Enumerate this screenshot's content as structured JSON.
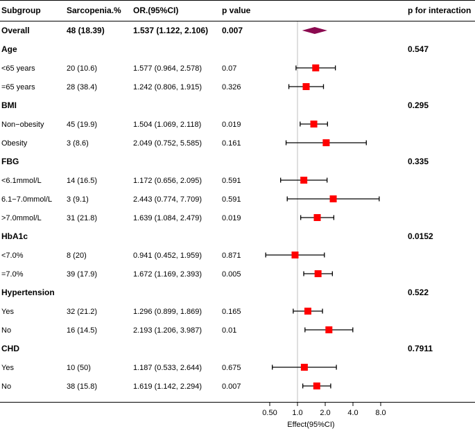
{
  "chart_data": {
    "type": "forest",
    "headers": {
      "subgroup": "Subgroup",
      "sarcopenia": "Sarcopenia.%",
      "or": "OR.(95%CI)",
      "p": "p value",
      "p_interaction": "p for interaction"
    },
    "overall": {
      "label": "Overall",
      "n": "48 (18.39)",
      "or_text": "1.537 (1.122, 2.106)",
      "p": "0.007",
      "est": 1.537,
      "lo": 1.122,
      "hi": 2.106
    },
    "groups": [
      {
        "name": "Age",
        "p_interaction": "0.547",
        "rows": [
          {
            "label": "<65 years",
            "n": "20 (10.6)",
            "or_text": "1.577 (0.964, 2.578)",
            "p": "0.07",
            "est": 1.577,
            "lo": 0.964,
            "hi": 2.578
          },
          {
            "label": "=65 years",
            "n": "28 (38.4)",
            "or_text": "1.242 (0.806, 1.915)",
            "p": "0.326",
            "est": 1.242,
            "lo": 0.806,
            "hi": 1.915
          }
        ]
      },
      {
        "name": "BMI",
        "p_interaction": "0.295",
        "rows": [
          {
            "label": "Non−obesity",
            "n": "45 (19.9)",
            "or_text": "1.504 (1.069, 2.118)",
            "p": "0.019",
            "est": 1.504,
            "lo": 1.069,
            "hi": 2.118
          },
          {
            "label": "Obesity",
            "n": "3 (8.6)",
            "or_text": "2.049 (0.752, 5.585)",
            "p": "0.161",
            "est": 2.049,
            "lo": 0.752,
            "hi": 5.585
          }
        ]
      },
      {
        "name": "FBG",
        "p_interaction": "0.335",
        "rows": [
          {
            "label": "<6.1mmol/L",
            "n": "14 (16.5)",
            "or_text": "1.172 (0.656, 2.095)",
            "p": "0.591",
            "est": 1.172,
            "lo": 0.656,
            "hi": 2.095
          },
          {
            "label": "6.1−7.0mmol/L",
            "n": "3 (9.1)",
            "or_text": "2.443 (0.774, 7.709)",
            "p": "0.591",
            "est": 2.443,
            "lo": 0.774,
            "hi": 7.709
          },
          {
            "label": ">7.0mmol/L",
            "n": "31 (21.8)",
            "or_text": "1.639 (1.084, 2.479)",
            "p": "0.019",
            "est": 1.639,
            "lo": 1.084,
            "hi": 2.479
          }
        ]
      },
      {
        "name": "HbA1c",
        "p_interaction": "0.0152",
        "rows": [
          {
            "label": "<7.0%",
            "n": "8 (20)",
            "or_text": "0.941 (0.452, 1.959)",
            "p": "0.871",
            "est": 0.941,
            "lo": 0.452,
            "hi": 1.959
          },
          {
            "label": "=7.0%",
            "n": "39 (17.9)",
            "or_text": "1.672 (1.169, 2.393)",
            "p": "0.005",
            "est": 1.672,
            "lo": 1.169,
            "hi": 2.393
          }
        ]
      },
      {
        "name": "Hypertension",
        "p_interaction": "0.522",
        "rows": [
          {
            "label": "Yes",
            "n": "32 (21.2)",
            "or_text": "1.296 (0.899, 1.869)",
            "p": "0.165",
            "est": 1.296,
            "lo": 0.899,
            "hi": 1.869
          },
          {
            "label": "No",
            "n": "16 (14.5)",
            "or_text": "2.193 (1.206, 3.987)",
            "p": "0.01",
            "est": 2.193,
            "lo": 1.206,
            "hi": 3.987
          }
        ]
      },
      {
        "name": "CHD",
        "p_interaction": "0.7911",
        "rows": [
          {
            "label": "Yes",
            "n": "10 (50)",
            "or_text": "1.187 (0.533, 2.644)",
            "p": "0.675",
            "est": 1.187,
            "lo": 0.533,
            "hi": 2.644
          },
          {
            "label": "No",
            "n": "38 (15.8)",
            "or_text": "1.619 (1.142, 2.294)",
            "p": "0.007",
            "est": 1.619,
            "lo": 1.142,
            "hi": 2.294
          }
        ]
      }
    ],
    "x_ticks": [
      0.5,
      1.0,
      2.0,
      4.0,
      8.0
    ],
    "x_tick_labels": [
      "0.50",
      "1.0",
      "2.0",
      "4.0",
      "8.0"
    ],
    "xlabel": "Effect(95%CI)",
    "x_scale": "log2",
    "reference_line": 1.0,
    "colors": {
      "point": "#ff0000",
      "overall": "#8b0a50",
      "ci": "#000000",
      "ref_line": "#bfbfbf"
    }
  }
}
